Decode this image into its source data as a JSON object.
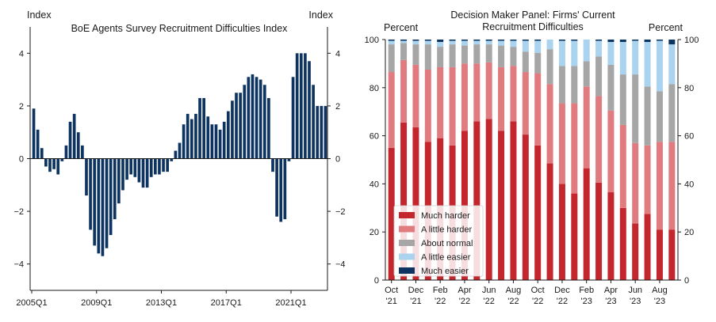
{
  "colors": {
    "navy": "#0d3461",
    "much_harder": "#c4262e",
    "a_little_harder": "#e07c80",
    "about_normal": "#a6a6a6",
    "a_little_easier": "#a9d3ee",
    "much_easier": "#0d3461",
    "axis": "#1a1a1a"
  },
  "chart_data": [
    {
      "type": "bar",
      "title": "BoE Agents Survey Recruitment Difficulties Index",
      "ylabel_left": "Index",
      "ylabel_right": "Index",
      "ylim": [
        -5,
        5
      ],
      "yticks": [
        -4,
        -2,
        0,
        2,
        4
      ],
      "ytick_labels": [
        "−4",
        "−2",
        "0",
        "2",
        "4"
      ],
      "yticks_right": [
        -4,
        -2,
        0,
        2,
        4
      ],
      "ytick_labels_right": [
        "−4",
        "−2",
        "0",
        "2",
        "4"
      ],
      "xtick_labels": [
        "2005Q1",
        "2009Q1",
        "2013Q1",
        "2017Q1",
        "2021Q1"
      ],
      "xtick_indices": [
        0,
        16,
        32,
        48,
        64
      ],
      "period_start": "2005Q1",
      "values": [
        1.9,
        1.1,
        0.4,
        -0.3,
        -0.5,
        -0.4,
        -0.6,
        -0.1,
        0.5,
        1.4,
        1.7,
        1.0,
        0.5,
        -1.4,
        -2.7,
        -3.3,
        -3.6,
        -3.7,
        -3.4,
        -2.9,
        -2.3,
        -1.7,
        -1.2,
        -0.8,
        -0.6,
        -0.7,
        -0.9,
        -1.1,
        -1.1,
        -0.7,
        -0.6,
        -0.6,
        -0.5,
        -0.5,
        -0.1,
        0.3,
        0.6,
        1.3,
        1.7,
        1.5,
        1.7,
        2.3,
        2.3,
        1.6,
        1.3,
        1.3,
        1.1,
        1.4,
        1.8,
        2.2,
        2.5,
        2.5,
        2.8,
        3.1,
        3.2,
        3.1,
        3.0,
        2.8,
        2.3,
        -0.5,
        -2.2,
        -2.4,
        -2.3,
        -0.1,
        3.1,
        4.0,
        4.0,
        4.0,
        3.7,
        2.8,
        2.0,
        2.0,
        2.0
      ]
    },
    {
      "type": "bar",
      "stacked": true,
      "title": "Decision Maker Panel: Firms' Current Recruitment Difficulties",
      "title_line1": "Decision Maker Panel: Firms' Current",
      "title_line2": "Recruitment Difficulties",
      "ylabel_left": "Percent",
      "ylabel_right": "Percent",
      "ylim": [
        0,
        100
      ],
      "yticks": [
        0,
        20,
        40,
        60,
        80,
        100
      ],
      "ytick_labels": [
        "0",
        "20",
        "40",
        "60",
        "80",
        "100"
      ],
      "months": [
        "Oct-21",
        "Nov-21",
        "Dec-21",
        "Jan-22",
        "Feb-22",
        "Mar-22",
        "Apr-22",
        "May-22",
        "Jun-22",
        "Jul-22",
        "Aug-22",
        "Sep-22",
        "Oct-22",
        "Nov-22",
        "Dec-22",
        "Jan-23",
        "Feb-23",
        "Mar-23",
        "Apr-23",
        "May-23",
        "Jun-23",
        "Jul-23",
        "Aug-23",
        "Sep-23"
      ],
      "xtick_indices": [
        0,
        2,
        4,
        6,
        8,
        10,
        12,
        14,
        16,
        18,
        20,
        22
      ],
      "xtick_labels_line1": [
        "Oct",
        "Dec",
        "Feb",
        "Apr",
        "Jun",
        "Aug",
        "Oct",
        "Dec",
        "Feb",
        "Apr",
        "Jun",
        "Aug"
      ],
      "xtick_labels_line2": [
        "'21",
        "'21",
        "'22",
        "'22",
        "'22",
        "'22",
        "'22",
        "'22",
        "'23",
        "'23",
        "'23",
        "'23"
      ],
      "legend_location": "lower-left",
      "series": [
        {
          "name": "Much harder",
          "color": "#c4262e",
          "values": [
            55,
            65.5,
            63.5,
            57.5,
            59,
            56,
            62,
            66,
            67,
            62,
            66,
            60.5,
            56,
            48.5,
            40,
            36,
            46.5,
            40.5,
            36.5,
            30,
            23.5,
            27.5,
            21,
            21
          ]
        },
        {
          "name": "A little harder",
          "color": "#e07c80",
          "values": [
            31.5,
            26,
            26,
            30,
            29.5,
            32.5,
            28,
            24,
            23.5,
            26.5,
            23,
            26,
            30,
            33,
            33.5,
            37.5,
            34,
            36,
            34,
            34.5,
            33.5,
            28.5,
            36.5,
            36.5
          ]
        },
        {
          "name": "About normal",
          "color": "#a6a6a6",
          "values": [
            11.5,
            7,
            8.5,
            10.5,
            8.5,
            9.5,
            7.5,
            8,
            7.5,
            9,
            8,
            8.5,
            8.5,
            14.5,
            15.5,
            15.5,
            10.5,
            16.5,
            19,
            21,
            28.5,
            24.5,
            21,
            24
          ]
        },
        {
          "name": "A little easier",
          "color": "#a9d3ee",
          "values": [
            1.5,
            1,
            1.5,
            1.5,
            2,
            1.5,
            2,
            1.5,
            1.5,
            2,
            2.5,
            4.5,
            5,
            4,
            10.5,
            10.5,
            9,
            6.5,
            9.5,
            13.5,
            14,
            18.5,
            21,
            16.5
          ]
        },
        {
          "name": "Much easier",
          "color": "#0d3461",
          "values": [
            0.5,
            0.5,
            0.5,
            0.5,
            1,
            0.5,
            0.5,
            0.5,
            0.5,
            0.5,
            0.5,
            0.5,
            0.5,
            0,
            0.5,
            0.5,
            0,
            0.5,
            1,
            1,
            0.5,
            1,
            0.5,
            2
          ]
        }
      ]
    }
  ]
}
